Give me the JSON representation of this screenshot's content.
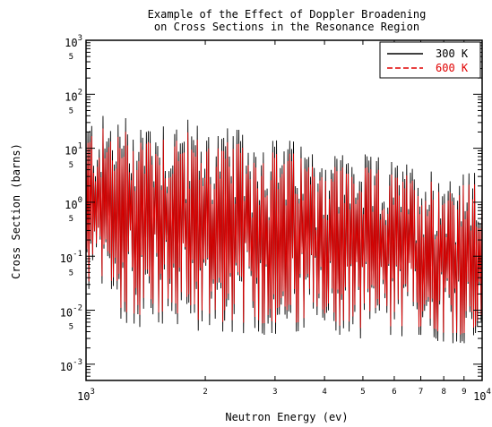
{
  "chart_data": {
    "type": "line",
    "title": [
      "Example of the Effect of Doppler Broadening",
      "on Cross Sections in the Resonance Region"
    ],
    "xlabel": "Neutron Energy (ev)",
    "ylabel": "Cross Section (barns)",
    "xscale": "log",
    "yscale": "log",
    "xlim": [
      1000,
      10000
    ],
    "ylim": [
      0.0005,
      1000
    ],
    "x_major_ticks": [
      {
        "value": 1000,
        "base": "10",
        "exp": "3"
      },
      {
        "value": 10000,
        "base": "10",
        "exp": "4"
      }
    ],
    "x_minor_ticks": [
      {
        "value": 2000,
        "label": "2"
      },
      {
        "value": 3000,
        "label": "3"
      },
      {
        "value": 4000,
        "label": "4"
      },
      {
        "value": 5000,
        "label": "5"
      },
      {
        "value": 6000,
        "label": "6"
      },
      {
        "value": 7000,
        "label": "7"
      },
      {
        "value": 8000,
        "label": "8"
      },
      {
        "value": 9000,
        "label": "9"
      }
    ],
    "y_major_ticks": [
      {
        "value": 0.001,
        "base": "10",
        "exp": "-3"
      },
      {
        "value": 0.01,
        "base": "10",
        "exp": "-2"
      },
      {
        "value": 0.1,
        "base": "10",
        "exp": "-1"
      },
      {
        "value": 1,
        "base": "10",
        "exp": "0"
      },
      {
        "value": 10,
        "base": "10",
        "exp": "1"
      },
      {
        "value": 100,
        "base": "10",
        "exp": "2"
      },
      {
        "value": 1000,
        "base": "10",
        "exp": "3"
      }
    ],
    "y_minor_labels": [
      {
        "value": 0.005,
        "label": "5"
      },
      {
        "value": 0.05,
        "label": "5"
      },
      {
        "value": 0.5,
        "label": "5"
      },
      {
        "value": 5,
        "label": "5"
      },
      {
        "value": 50,
        "label": "5"
      },
      {
        "value": 500,
        "label": "5"
      }
    ],
    "legend_position": "top-right",
    "series": [
      {
        "name": "300 K",
        "color": "#000000",
        "style": "solid"
      },
      {
        "name": "600 K",
        "color": "#e00000",
        "style": "dashed"
      }
    ],
    "envelope": {
      "peak_max": [
        [
          1000,
          40
        ],
        [
          1500,
          50
        ],
        [
          2000,
          30
        ],
        [
          3000,
          17
        ],
        [
          5000,
          8
        ],
        [
          7000,
          5
        ],
        [
          10000,
          3.5
        ]
      ],
      "valley_min": [
        [
          1000,
          0.02
        ],
        [
          1300,
          0.005
        ],
        [
          2000,
          0.004
        ],
        [
          4000,
          0.003
        ],
        [
          7000,
          0.003
        ],
        [
          10000,
          0.002
        ]
      ]
    },
    "resonance_count": 420,
    "grid": false
  }
}
